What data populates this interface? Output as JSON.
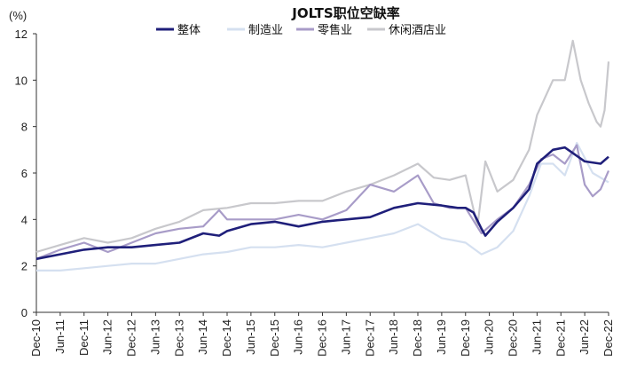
{
  "chart_data": {
    "type": "line",
    "title": "JOLTS职位空缺率",
    "ylabel": "(%)",
    "xlabel": "",
    "ylim": [
      0,
      12
    ],
    "yticks": [
      0,
      2,
      4,
      6,
      8,
      10,
      12
    ],
    "grid": false,
    "legend_position": "top",
    "x_start": "2010-12",
    "x_end": "2022-12",
    "xticks": [
      "Dec-10",
      "Jun-11",
      "Dec-11",
      "Jun-12",
      "Dec-12",
      "Jun-13",
      "Dec-13",
      "Jun-14",
      "Dec-14",
      "Jun-15",
      "Dec-15",
      "Jun-16",
      "Dec-16",
      "Jun-17",
      "Dec-17",
      "Jun-18",
      "Dec-18",
      "Jun-19",
      "Dec-19",
      "Jun-20",
      "Dec-20",
      "Jun-21",
      "Dec-21",
      "Jun-22",
      "Dec-22"
    ],
    "series": [
      {
        "name": "整体",
        "color": "#1f1f7a",
        "anchors": [
          [
            0,
            2.3
          ],
          [
            6,
            2.5
          ],
          [
            12,
            2.7
          ],
          [
            18,
            2.8
          ],
          [
            24,
            2.8
          ],
          [
            30,
            2.9
          ],
          [
            36,
            3.0
          ],
          [
            42,
            3.4
          ],
          [
            46,
            3.3
          ],
          [
            48,
            3.5
          ],
          [
            54,
            3.8
          ],
          [
            60,
            3.9
          ],
          [
            66,
            3.7
          ],
          [
            72,
            3.9
          ],
          [
            78,
            4.0
          ],
          [
            84,
            4.1
          ],
          [
            90,
            4.5
          ],
          [
            96,
            4.7
          ],
          [
            102,
            4.6
          ],
          [
            106,
            4.5
          ],
          [
            108,
            4.5
          ],
          [
            110,
            4.3
          ],
          [
            112,
            3.6
          ],
          [
            113,
            3.3
          ],
          [
            116,
            3.9
          ],
          [
            120,
            4.5
          ],
          [
            124,
            5.3
          ],
          [
            126,
            6.4
          ],
          [
            130,
            7.0
          ],
          [
            133,
            7.1
          ],
          [
            138,
            6.5
          ],
          [
            142,
            6.4
          ],
          [
            144,
            6.7
          ]
        ]
      },
      {
        "name": "制造业",
        "color": "#d5e0f0",
        "anchors": [
          [
            0,
            1.8
          ],
          [
            6,
            1.8
          ],
          [
            12,
            1.9
          ],
          [
            18,
            2.0
          ],
          [
            24,
            2.1
          ],
          [
            30,
            2.1
          ],
          [
            36,
            2.3
          ],
          [
            42,
            2.5
          ],
          [
            48,
            2.6
          ],
          [
            54,
            2.8
          ],
          [
            60,
            2.8
          ],
          [
            66,
            2.9
          ],
          [
            72,
            2.8
          ],
          [
            78,
            3.0
          ],
          [
            84,
            3.2
          ],
          [
            90,
            3.4
          ],
          [
            96,
            3.8
          ],
          [
            102,
            3.2
          ],
          [
            108,
            3.0
          ],
          [
            112,
            2.5
          ],
          [
            116,
            2.8
          ],
          [
            120,
            3.5
          ],
          [
            124,
            5.0
          ],
          [
            127,
            6.4
          ],
          [
            130,
            6.4
          ],
          [
            133,
            5.9
          ],
          [
            136,
            7.3
          ],
          [
            140,
            6.0
          ],
          [
            144,
            5.6
          ]
        ]
      },
      {
        "name": "零售业",
        "color": "#a89cc8",
        "anchors": [
          [
            0,
            2.3
          ],
          [
            6,
            2.7
          ],
          [
            12,
            3.0
          ],
          [
            18,
            2.6
          ],
          [
            24,
            3.0
          ],
          [
            30,
            3.4
          ],
          [
            36,
            3.6
          ],
          [
            42,
            3.7
          ],
          [
            46,
            4.4
          ],
          [
            48,
            4.0
          ],
          [
            54,
            4.0
          ],
          [
            60,
            4.0
          ],
          [
            66,
            4.2
          ],
          [
            72,
            4.0
          ],
          [
            78,
            4.4
          ],
          [
            84,
            5.5
          ],
          [
            90,
            5.2
          ],
          [
            96,
            5.9
          ],
          [
            100,
            4.7
          ],
          [
            104,
            4.5
          ],
          [
            108,
            4.5
          ],
          [
            112,
            3.4
          ],
          [
            114,
            3.7
          ],
          [
            116,
            4.0
          ],
          [
            120,
            4.5
          ],
          [
            124,
            5.5
          ],
          [
            127,
            6.6
          ],
          [
            130,
            6.8
          ],
          [
            133,
            6.4
          ],
          [
            136,
            7.2
          ],
          [
            138,
            5.5
          ],
          [
            140,
            5.0
          ],
          [
            142,
            5.3
          ],
          [
            144,
            6.1
          ]
        ]
      },
      {
        "name": "休闲酒店业",
        "color": "#c8c8cc",
        "anchors": [
          [
            0,
            2.6
          ],
          [
            6,
            2.9
          ],
          [
            12,
            3.2
          ],
          [
            18,
            3.0
          ],
          [
            24,
            3.2
          ],
          [
            30,
            3.6
          ],
          [
            36,
            3.9
          ],
          [
            42,
            4.4
          ],
          [
            48,
            4.5
          ],
          [
            54,
            4.7
          ],
          [
            60,
            4.7
          ],
          [
            66,
            4.8
          ],
          [
            72,
            4.8
          ],
          [
            78,
            5.2
          ],
          [
            84,
            5.5
          ],
          [
            90,
            5.9
          ],
          [
            96,
            6.4
          ],
          [
            100,
            5.8
          ],
          [
            104,
            5.7
          ],
          [
            108,
            5.9
          ],
          [
            111,
            3.7
          ],
          [
            113,
            6.5
          ],
          [
            116,
            5.2
          ],
          [
            120,
            5.7
          ],
          [
            124,
            7.0
          ],
          [
            126,
            8.5
          ],
          [
            130,
            10.0
          ],
          [
            133,
            10.0
          ],
          [
            135,
            11.7
          ],
          [
            137,
            10.0
          ],
          [
            139,
            9.0
          ],
          [
            141,
            8.2
          ],
          [
            142,
            8.0
          ],
          [
            143,
            8.7
          ],
          [
            144,
            10.8
          ]
        ]
      }
    ]
  }
}
